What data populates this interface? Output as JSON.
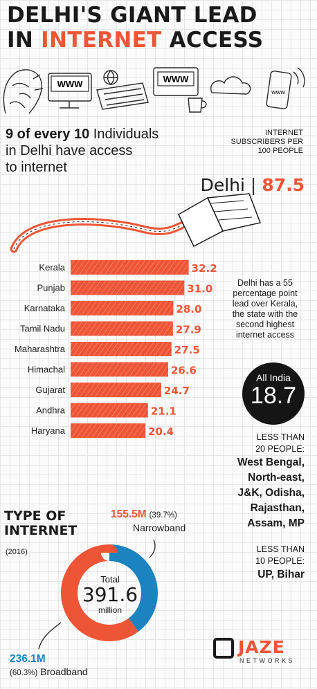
{
  "title": {
    "line1": "DELHI'S GIANT LEAD",
    "line2_prefix": "IN ",
    "line2_accent": "INTERNET",
    "line2_suffix": " ACCESS"
  },
  "header_icons": {
    "browser1": "WWW",
    "browser2": "WWW",
    "phone_badge": "www",
    "icons": [
      "face-icon",
      "laptop-icon",
      "globe-icon",
      "keyboard-icon",
      "coffee-cup-icon",
      "cloud-icon",
      "phone-icon"
    ]
  },
  "subhead": {
    "bold": "9 of every 10",
    "line1_rest": " Individuals",
    "line2": "in Delhi have access",
    "line3": "to internet"
  },
  "subscribers_label": [
    "INTERNET",
    "SUBSCRIBERS PER",
    "100 PEOPLE"
  ],
  "delhi": {
    "name": "Delhi",
    "sep": "|",
    "value": "87.5"
  },
  "note": "Delhi has a 55 percentage point lead over Kerala, the state with the second highest internet access",
  "all_india": {
    "label": "All India",
    "value": "18.7"
  },
  "less20": {
    "label": [
      "LESS THAN",
      "20 PEOPLE:"
    ],
    "states": [
      "West Bengal,",
      "North-east,",
      "J&K, Odisha,",
      "Rajasthan,",
      "Assam, MP"
    ]
  },
  "less10": {
    "label": [
      "LESS THAN",
      "10 PEOPLE:"
    ],
    "states": [
      "UP, Bihar"
    ]
  },
  "colors": {
    "accent": "#ee5536",
    "blue": "#1a83c0",
    "dark": "#151515"
  },
  "chart_data": [
    {
      "type": "bar",
      "orientation": "horizontal",
      "categories": [
        "Kerala",
        "Punjab",
        "Karnataka",
        "Tamil Nadu",
        "Maharashtra",
        "Himachal",
        "Gujarat",
        "Andhra",
        "Haryana"
      ],
      "values": [
        32.2,
        31.0,
        28.0,
        27.9,
        27.5,
        26.6,
        24.7,
        21.1,
        20.4
      ],
      "value_labels": [
        "32.2",
        "31.0",
        "28.0",
        "27.9",
        "27.5",
        "26.6",
        "24.7",
        "21.1",
        "20.4"
      ],
      "color": "#ee5536"
    },
    {
      "type": "pie",
      "title": "TYPE OF INTERNET",
      "subtitle": "(2016)",
      "center_label": "Total",
      "center_value": "391.6",
      "center_unit": "million",
      "slices": [
        {
          "name": "Narrowband",
          "value": 155.5,
          "value_label": "155.5M",
          "pct": "(39.7%)",
          "color": "#1a83c0"
        },
        {
          "name": "Broadband",
          "value": 236.1,
          "value_label": "236.1M",
          "pct": "(60.3%)",
          "color": "#ee5536"
        }
      ]
    }
  ],
  "logo": {
    "name": "JAZE",
    "sub": "NETWORKS"
  }
}
